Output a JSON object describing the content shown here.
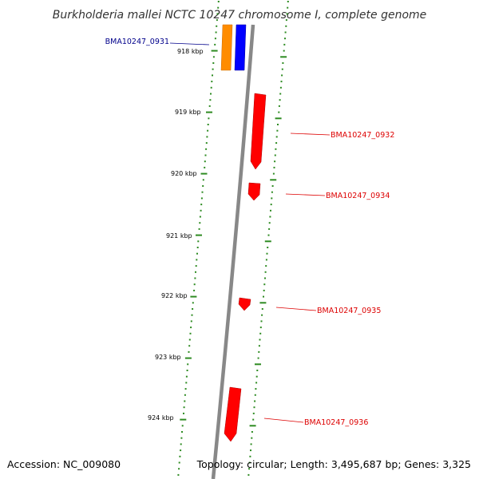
{
  "title": "Burkholderia mallei NCTC 10247 chromosome I, complete genome",
  "footer": {
    "accession": "Accession: NC_009080",
    "topology": "Topology: circular; Length: 3,495,687 bp; Genes: 3,325"
  },
  "colors": {
    "backbone": "#888888",
    "tick": "#2e8b22",
    "forward_gene": "#ff0000",
    "reverse_gene": "#0000ff",
    "other_gene": "#ff8c00",
    "label_blue": "#00008b",
    "label_red": "#dd0000"
  },
  "kbp_ticks": [
    "918 kbp",
    "919 kbp",
    "920 kbp",
    "921 kbp",
    "922 kbp",
    "923 kbp",
    "924 kbp"
  ],
  "genes": [
    {
      "label": "BMA10247_0931",
      "color": "blue"
    },
    {
      "label": "BMA10247_0932",
      "color": "red"
    },
    {
      "label": "BMA10247_0934",
      "color": "red"
    },
    {
      "label": "BMA10247_0935",
      "color": "red"
    },
    {
      "label": "BMA10247_0936",
      "color": "red"
    }
  ]
}
